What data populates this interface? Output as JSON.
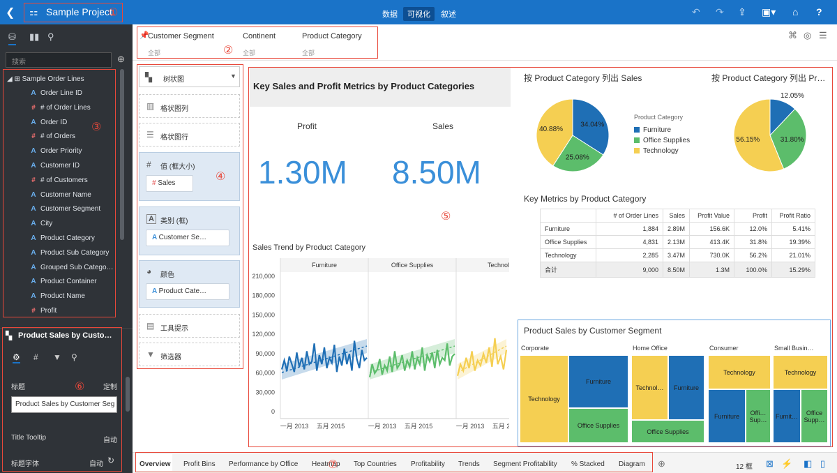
{
  "topbar": {
    "title": "Sample Project",
    "modes": [
      "数据",
      "可视化",
      "叙述"
    ],
    "active_mode": "可视化"
  },
  "markers": [
    "①",
    "②",
    "③",
    "④",
    "⑤",
    "⑥",
    "⑦"
  ],
  "leftpanel": {
    "search_placeholder": "搜索",
    "dataset": "Sample Order Lines",
    "columns": [
      {
        "icon": "A",
        "label": "Order Line ID"
      },
      {
        "icon": "#",
        "label": "# of Order Lines"
      },
      {
        "icon": "A",
        "label": "Order ID"
      },
      {
        "icon": "#",
        "label": "# of Orders"
      },
      {
        "icon": "A",
        "label": "Order Priority"
      },
      {
        "icon": "A",
        "label": "Customer ID"
      },
      {
        "icon": "#",
        "label": "# of Customers"
      },
      {
        "icon": "A",
        "label": "Customer Name"
      },
      {
        "icon": "A",
        "label": "Customer Segment"
      },
      {
        "icon": "A",
        "label": "City"
      },
      {
        "icon": "A",
        "label": "Product Category"
      },
      {
        "icon": "A",
        "label": "Product Sub Category"
      },
      {
        "icon": "A",
        "label": "Grouped Sub Catego…"
      },
      {
        "icon": "A",
        "label": "Product Container"
      },
      {
        "icon": "A",
        "label": "Product Name"
      },
      {
        "icon": "#",
        "label": "Profit"
      }
    ],
    "props": {
      "viz_name": "Product Sales by Custo…",
      "title_label": "标题",
      "title_mode": "定制",
      "title_value": "Product Sales by Customer Seg",
      "tooltip_label": "Title Tooltip",
      "tooltip_mode": "自动",
      "font_label": "标题字体",
      "font_mode": "自动"
    }
  },
  "filters": [
    {
      "label": "Customer Segment",
      "value": "全部"
    },
    {
      "label": "Continent",
      "value": "全部"
    },
    {
      "label": "Product Category",
      "value": "全部"
    }
  ],
  "grammar": {
    "viz_type": "树状图",
    "columns_label": "格状图列",
    "rows_label": "格状图行",
    "value_label": "值 (框大小)",
    "value_pill": "Sales",
    "category_label": "类别 (框)",
    "category_pill": "Customer Se…",
    "color_label": "颜色",
    "color_pill": "Product Cate…",
    "tooltip_label": "工具提示",
    "filter_label": "筛选器"
  },
  "canvas": {
    "kpi_title": "Key Sales and Profit Metrics by Product Categories",
    "kpi": [
      {
        "label": "Profit",
        "value": "1.30M"
      },
      {
        "label": "Sales",
        "value": "8.50M"
      }
    ],
    "pie1_title": "按 Product Category 列出 Sales",
    "pie2_title": "按 Product Category 列出 Pr…",
    "legend_title": "Product Category",
    "legend": [
      {
        "label": "Furniture",
        "color": "#1f6fb5"
      },
      {
        "label": "Office Supplies",
        "color": "#5cbd6b"
      },
      {
        "label": "Technology",
        "color": "#f5cf52"
      }
    ],
    "table_title": "Key Metrics by Product Category",
    "table_headers": [
      "",
      "# of Order Lines",
      "Sales",
      "Profit Value",
      "Profit",
      "Profit Ratio"
    ],
    "table_rows": [
      [
        "Furniture",
        "1,884",
        "2.89M",
        "156.6K",
        "12.0%",
        "5.41%"
      ],
      [
        "Office Supplies",
        "4,831",
        "2.13M",
        "413.4K",
        "31.8%",
        "19.39%"
      ],
      [
        "Technology",
        "2,285",
        "3.47M",
        "730.0K",
        "56.2%",
        "21.01%"
      ],
      [
        "合计",
        "9,000",
        "8.50M",
        "1.3M",
        "100.0%",
        "15.29%"
      ]
    ],
    "trend_title": "Sales Trend by Product Category",
    "trend_panels": [
      "Furniture",
      "Office Supplies",
      "Technolo"
    ],
    "trend_x_ticks": [
      "一月 2013",
      "五月 2015"
    ],
    "treemap_title": "Product Sales by Customer Segment",
    "treemap_segments": [
      "Corporate",
      "Home Office",
      "Consumer",
      "Small Busin…"
    ],
    "treemap_labels": {
      "technology": "Technology",
      "furniture": "Furniture",
      "office": "Office Supplies",
      "technol_short": "Technol…",
      "offi_sup": "Offi… Sup…",
      "furnit": "Furnit…",
      "office_supp": "Office Supp…"
    }
  },
  "bottom_tabs": [
    "Overview",
    "Profit Bins",
    "Performance by Office",
    "Heatmap",
    "Top Countries",
    "Profitability",
    "Trends",
    "Segment Profitability",
    "% Stacked",
    "Diagram"
  ],
  "active_tab": "Overview",
  "status": {
    "count": "12 框"
  },
  "chart_data": [
    {
      "type": "pie",
      "title": "按 Product Category 列出 Sales",
      "categories": [
        "Furniture",
        "Office Supplies",
        "Technology"
      ],
      "values": [
        34.04,
        25.08,
        40.88
      ],
      "legend": "right"
    },
    {
      "type": "pie",
      "title": "按 Product Category 列出 Pr…",
      "categories": [
        "Furniture",
        "Office Supplies",
        "Technology"
      ],
      "values": [
        12.05,
        31.8,
        56.15
      ]
    },
    {
      "type": "line",
      "title": "Sales Trend by Product Category",
      "panels": [
        "Furniture",
        "Office Supplies",
        "Technolo"
      ],
      "ylim": [
        0,
        210000
      ],
      "y_ticks": [
        "0",
        "30,000",
        "60,000",
        "90,000",
        "120,000",
        "150,000",
        "180,000",
        "210,000"
      ],
      "x_ticks": [
        "一月 2013",
        "五月 2015"
      ]
    },
    {
      "type": "treemap",
      "title": "Product Sales by Customer Segment",
      "segments": [
        "Corporate",
        "Home Office",
        "Consumer",
        "Small Busin…"
      ],
      "color_by": "Product Category"
    }
  ]
}
